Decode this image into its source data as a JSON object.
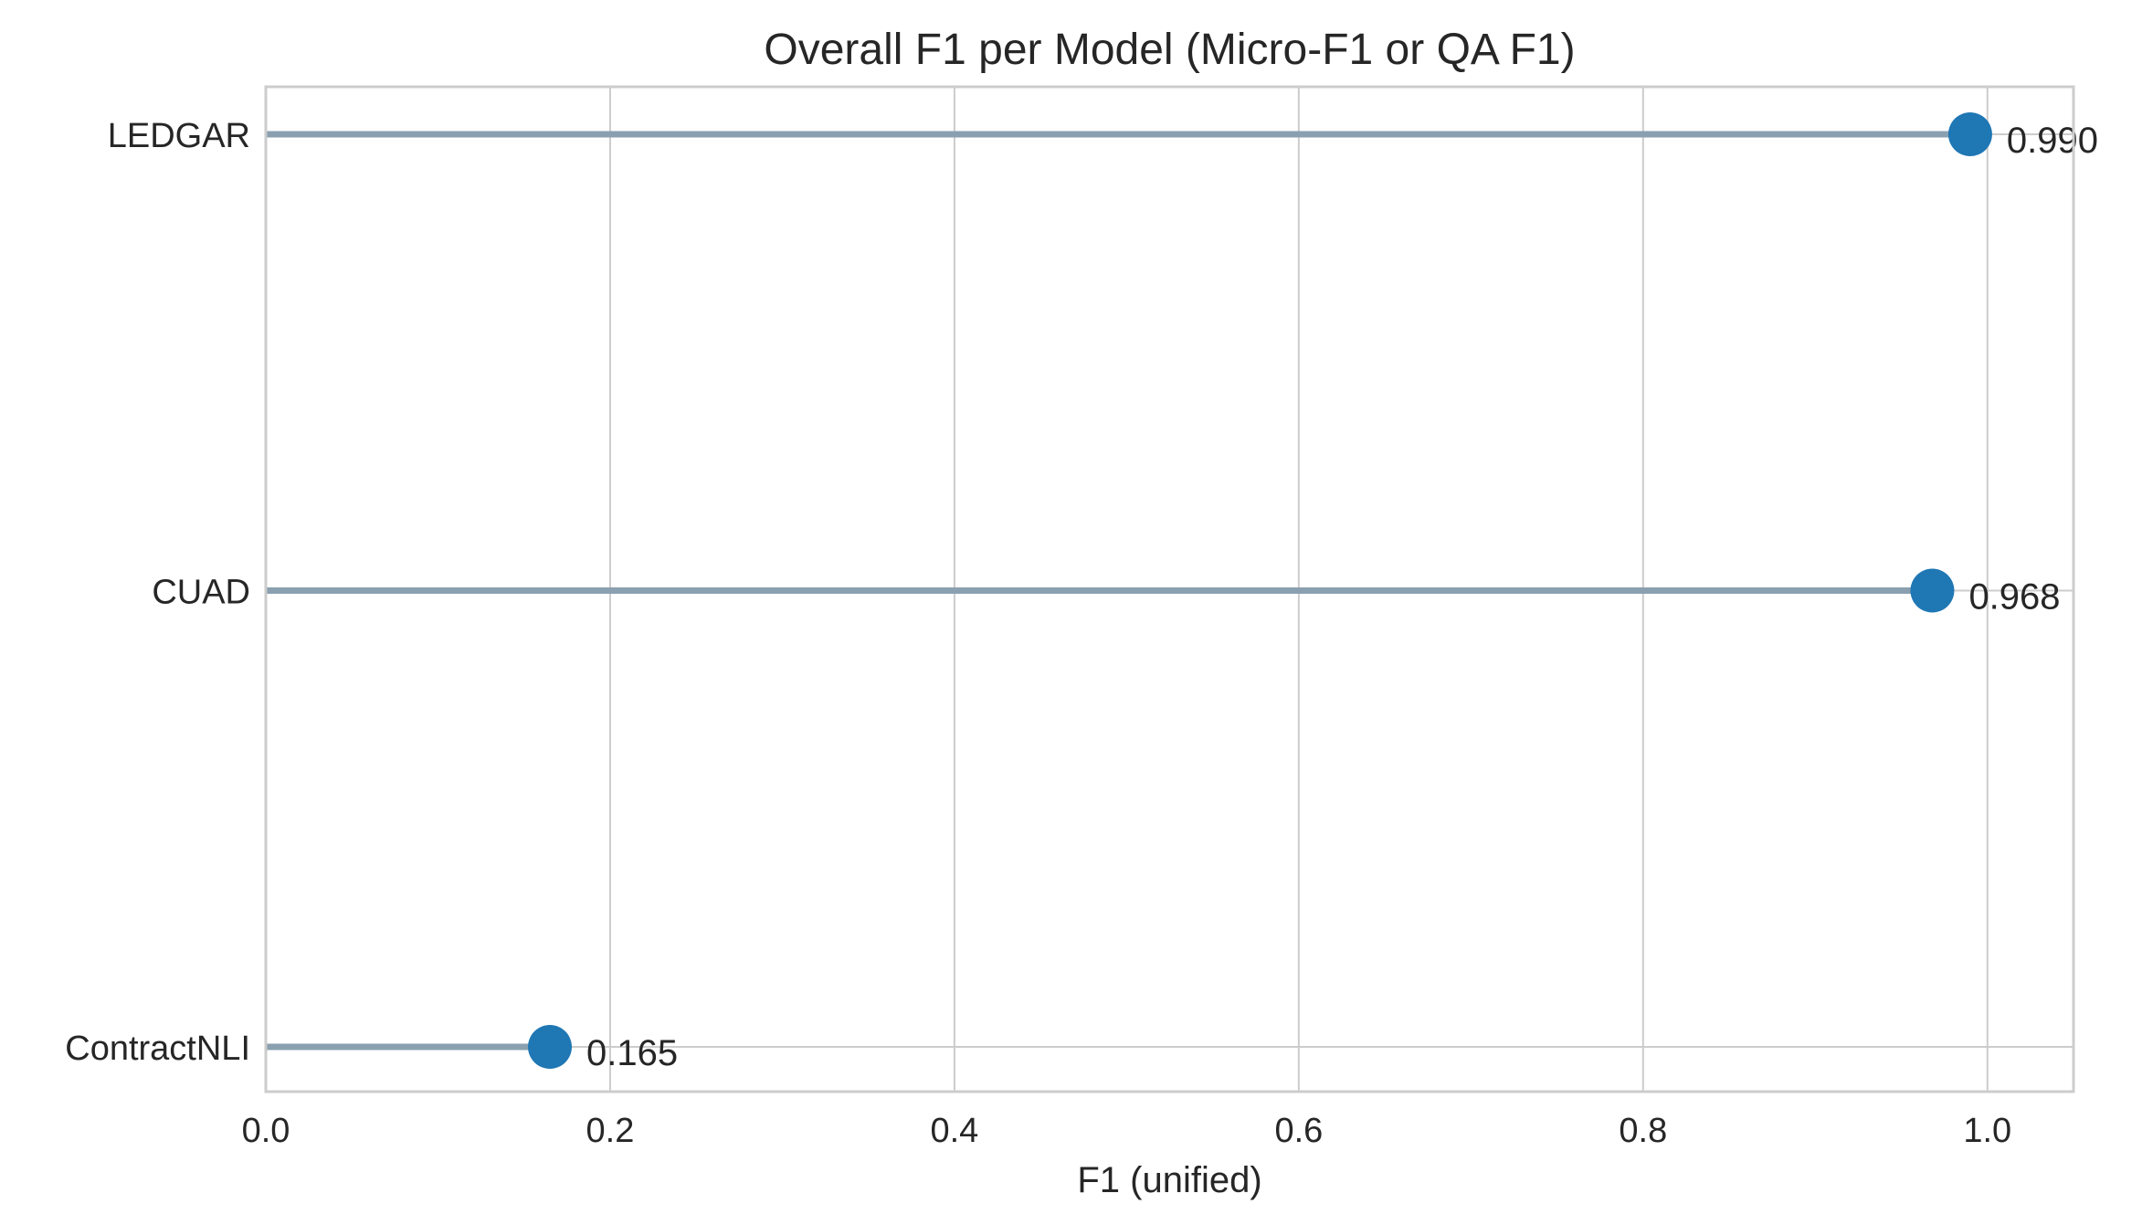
{
  "chart_data": {
    "type": "lollipop",
    "title": "Overall F1 per Model (Micro-F1 or QA F1)",
    "xlabel": "F1 (unified)",
    "ylabel": "",
    "xlim": [
      0.0,
      1.05
    ],
    "x_ticks": [
      0.0,
      0.2,
      0.4,
      0.6,
      0.8,
      1.0
    ],
    "x_tick_labels": [
      "0.0",
      "0.2",
      "0.4",
      "0.6",
      "0.8",
      "1.0"
    ],
    "grid": true,
    "orientation": "horizontal",
    "categories": [
      "LEDGAR",
      "CUAD",
      "ContractNLI"
    ],
    "values": [
      0.99,
      0.968,
      0.165
    ],
    "value_labels": [
      "0.990",
      "0.968",
      "0.165"
    ],
    "colors": {
      "stem": "#8aa0b0",
      "marker": "#1f77b4",
      "grid": "#cccccc",
      "frame": "#cccccc",
      "text": "#262626"
    }
  }
}
